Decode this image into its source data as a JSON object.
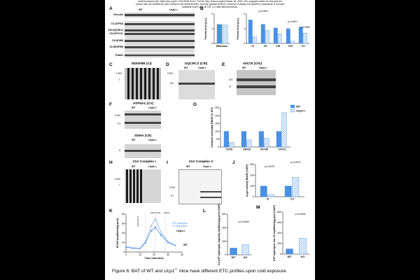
{
  "header": {
    "line1": "bioRxiv preprint doi: https://doi.org/10.1101/2025.03.14.712220; this version posted March 18, 2025. The copyright holder for this preprint",
    "line2": "(which was not certified by peer review) is the author/funder, who has granted bioRxiv a license to display the preprint in perpetuity. It is made",
    "line3": "available under aCC-BY-NC 4.0 International license."
  },
  "panel_letters": [
    "A",
    "B",
    "C",
    "D",
    "E",
    "F",
    "G",
    "H",
    "I",
    "J",
    "K",
    "L",
    "M"
  ],
  "panelA": {
    "genotypes": [
      "WT",
      "Ucp1-/-"
    ],
    "rows": [
      "Vinculin",
      "CV-ATP5A",
      "CIII-UQCRC2",
      "CIV-MTCO1",
      "CII-SDHB",
      "CI-NDUFB8",
      "TOM20"
    ]
  },
  "panelC": {
    "title": "NDUFB6 (CI)",
    "labels": [
      "I+III2",
      "I"
    ]
  },
  "panelD": {
    "title": "UQCRC2 (CIII)",
    "genotypes": [
      "WT",
      "Ucp1-/-"
    ],
    "labels": [
      "I+III2",
      "III2"
    ]
  },
  "panelE": {
    "title": "mtCOI (CIV)",
    "genotypes": [
      "WT",
      "Ucp1-/-"
    ],
    "labels": [
      "IV2",
      "IV"
    ]
  },
  "panelF": {
    "title": "ATP5A1 (CV)",
    "genotypes": [
      "WT",
      "Ucp1-/-"
    ],
    "labels": [
      "CVm",
      "F1"
    ],
    "subtitle": "SDHA (CII)",
    "sublabel": "II"
  },
  "panelH": {
    "title": "IGA Complex I",
    "genotypes": [
      "WT",
      "Ucp1-/-"
    ],
    "labels": [
      "I+III2",
      "I"
    ]
  },
  "panelI": {
    "title": "IGA Complex V",
    "genotypes": [
      "WT",
      "Ucp1-/-"
    ],
    "labels": [
      "CVm",
      "F1"
    ]
  },
  "panelK": {
    "annotations": [
      "Antimycin A",
      "ATP+FCCP",
      "OLIGO"
    ],
    "legend_wt": "WT",
    "legend_ko": "Ucp1-/-",
    "callout": [
      "ATP hydrolysis",
      "CV-dependent"
    ]
  },
  "colors": {
    "wt": "#4a90e2",
    "ko": "#9ec3ef",
    "ko_stroke": "#4a90e2",
    "text": "#000000",
    "background": "#ffffff"
  },
  "caption": {
    "prefix": "Figure 6:  BAT of WT and ",
    "gene": "Ucp1",
    "sup": "-/-",
    "suffix": " mice have different ETC profiles upon cold exposure."
  },
  "chart_data": [
    {
      "id": "B",
      "type": "bar",
      "xlabel": "",
      "ylabel": "Protein level (a.u.)",
      "subplots": [
        {
          "categories": [
            "Biomass"
          ],
          "ylim": [
            0,
            2
          ],
          "series": [
            {
              "name": "WT",
              "values": [
                1.3
              ]
            },
            {
              "name": "Ucp1-/-",
              "values": [
                1.25
              ]
            }
          ]
        },
        {
          "categories": [
            "CI",
            "CII",
            "CIII",
            "CIV",
            "CV"
          ],
          "ylim": [
            0,
            2
          ],
          "series": [
            {
              "name": "WT",
              "values": [
                1.6,
                1.3,
                1.05,
                1.0,
                1.1
              ]
            },
            {
              "name": "Ucp1-/-",
              "values": [
                0.45,
                0.9,
                0.65,
                0.15,
                0.7
              ]
            }
          ]
        }
      ],
      "annotations": [
        "p=0.0001",
        "p=0.0001",
        "p=0.0482"
      ]
    },
    {
      "id": "G",
      "type": "bar",
      "ylabel": "Complex assembly BNGE (% WT)",
      "categories": [
        "CI/CII",
        "CIII/CII",
        "CIV/CII",
        "CV/CII"
      ],
      "series": [
        {
          "name": "WT",
          "values": [
            100,
            100,
            100,
            100
          ]
        },
        {
          "name": "Ucp1-/-",
          "values": [
            30,
            45,
            55,
            220
          ]
        }
      ],
      "ylim": [
        0,
        250
      ],
      "yticks": [
        0,
        50,
        100,
        150,
        200,
        250
      ],
      "legend": "top-right"
    },
    {
      "id": "J",
      "type": "bar",
      "ylabel": "In-gel activity BNGE (%WT)",
      "categories": [
        "CI",
        "CV"
      ],
      "series": [
        {
          "name": "WT",
          "values": [
            100,
            100
          ]
        },
        {
          "name": "Ucp1-/-",
          "values": [
            20,
            180
          ]
        }
      ],
      "ylim": [
        0,
        300
      ],
      "yticks": [
        0,
        100,
        200,
        300
      ],
      "annotations": [
        "p=0.0079",
        "p=0.0079"
      ]
    },
    {
      "id": "K",
      "type": "line",
      "xlabel": "Time (minutes)",
      "ylabel": "ECAR (mpH/min/µg prot)",
      "xlim": [
        0,
        40
      ],
      "xticks": [
        0,
        10,
        20,
        30,
        40
      ],
      "ylim": [
        0,
        80
      ],
      "yticks": [
        0,
        20,
        40,
        60,
        80
      ],
      "series": [
        {
          "name": "WT",
          "x": [
            0,
            5,
            10,
            14,
            18,
            21,
            25,
            30,
            35
          ],
          "y": [
            10,
            8,
            7,
            20,
            45,
            52,
            36,
            20,
            14
          ]
        },
        {
          "name": "Ucp1-/-",
          "x": [
            0,
            5,
            10,
            14,
            18,
            21,
            25,
            30,
            35
          ],
          "y": [
            12,
            9,
            8,
            22,
            55,
            70,
            42,
            22,
            15
          ]
        }
      ]
    },
    {
      "id": "L",
      "type": "bar",
      "ylabel": "CV-ATP hydrolytic capacity mpH/min/µg prot (%WT)",
      "categories": [
        "WT",
        "KO"
      ],
      "values": [
        100,
        150
      ],
      "ylim": [
        0,
        600
      ],
      "yticks": [
        0,
        200,
        400,
        600
      ],
      "annotations": [
        "p=0.0408"
      ]
    },
    {
      "id": "M",
      "type": "bar",
      "ylabel": "ATP hydrolysis not CV mpH/min/µg prot (%WT)",
      "categories": [
        "WT",
        "KO"
      ],
      "values": [
        100,
        300
      ],
      "ylim": [
        0,
        800
      ],
      "yticks": [
        0,
        200,
        400,
        600,
        800
      ],
      "annotations": [
        "p=0.0004"
      ]
    }
  ]
}
